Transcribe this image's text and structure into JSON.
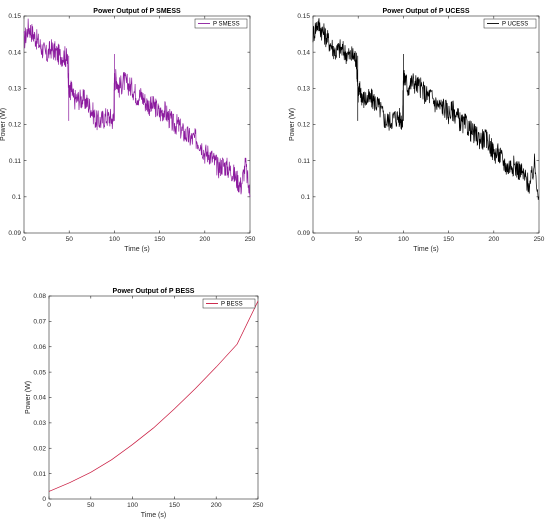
{
  "chart_data": [
    {
      "type": "line",
      "title": "Power Output of P SMESS",
      "xlabel": "Time (s)",
      "ylabel": "Power (W)",
      "xlim": [
        0,
        250
      ],
      "ylim": [
        0.09,
        0.15
      ],
      "xticks": [
        0,
        50,
        100,
        150,
        200,
        250
      ],
      "yticks": [
        0.09,
        0.1,
        0.11,
        0.12,
        0.13,
        0.14,
        0.15
      ],
      "ytick_labels": [
        "0.09",
        "0.1",
        "0.11",
        "0.12",
        "0.13",
        "0.14",
        "0.15"
      ],
      "legend_position": "top-right",
      "series": [
        {
          "name": "P SMESS",
          "color": "#8B1A9E",
          "x": [
            0,
            5,
            10,
            15,
            20,
            25,
            30,
            35,
            40,
            45,
            48,
            50,
            52,
            55,
            60,
            65,
            70,
            75,
            80,
            85,
            90,
            95,
            99,
            100,
            102,
            105,
            110,
            115,
            120,
            125,
            130,
            135,
            140,
            145,
            150,
            155,
            160,
            165,
            170,
            175,
            180,
            185,
            190,
            195,
            200,
            205,
            210,
            215,
            220,
            225,
            230,
            235,
            240,
            245,
            250
          ],
          "y": [
            0.143,
            0.147,
            0.145,
            0.143,
            0.141,
            0.139,
            0.141,
            0.14,
            0.139,
            0.139,
            0.138,
            0.128,
            0.13,
            0.127,
            0.127,
            0.127,
            0.126,
            0.124,
            0.121,
            0.121,
            0.122,
            0.122,
            0.121,
            0.132,
            0.133,
            0.13,
            0.132,
            0.131,
            0.13,
            0.128,
            0.128,
            0.126,
            0.125,
            0.125,
            0.123,
            0.124,
            0.122,
            0.12,
            0.12,
            0.118,
            0.117,
            0.116,
            0.116,
            0.115,
            0.112,
            0.112,
            0.11,
            0.108,
            0.109,
            0.108,
            0.107,
            0.105,
            0.103,
            0.109,
            0.1
          ]
        }
      ]
    },
    {
      "type": "line",
      "title": "Power Output of P UCESS",
      "xlabel": "Time (s)",
      "ylabel": "Power (W)",
      "xlim": [
        0,
        250
      ],
      "ylim": [
        0.09,
        0.15
      ],
      "xticks": [
        0,
        50,
        100,
        150,
        200,
        250
      ],
      "yticks": [
        0.09,
        0.1,
        0.11,
        0.12,
        0.13,
        0.14,
        0.15
      ],
      "ytick_labels": [
        "0.09",
        "0.1",
        "0.11",
        "0.12",
        "0.13",
        "0.14",
        "0.15"
      ],
      "legend_position": "top-right",
      "series": [
        {
          "name": "P UCESS",
          "color": "#000000",
          "x": [
            0,
            5,
            10,
            15,
            20,
            25,
            30,
            35,
            40,
            45,
            48,
            50,
            52,
            55,
            60,
            65,
            70,
            75,
            80,
            85,
            90,
            95,
            99,
            100,
            102,
            105,
            110,
            115,
            120,
            125,
            130,
            135,
            140,
            145,
            150,
            155,
            160,
            165,
            170,
            175,
            180,
            185,
            190,
            195,
            200,
            205,
            210,
            215,
            220,
            225,
            230,
            235,
            240,
            245,
            250
          ],
          "y": [
            0.145,
            0.148,
            0.146,
            0.144,
            0.142,
            0.14,
            0.141,
            0.14,
            0.139,
            0.139,
            0.138,
            0.128,
            0.13,
            0.127,
            0.127,
            0.127,
            0.126,
            0.124,
            0.121,
            0.121,
            0.122,
            0.122,
            0.121,
            0.132,
            0.133,
            0.13,
            0.132,
            0.131,
            0.13,
            0.128,
            0.128,
            0.126,
            0.125,
            0.125,
            0.123,
            0.124,
            0.122,
            0.12,
            0.12,
            0.118,
            0.117,
            0.116,
            0.116,
            0.115,
            0.112,
            0.112,
            0.11,
            0.108,
            0.109,
            0.108,
            0.107,
            0.105,
            0.103,
            0.109,
            0.1
          ]
        }
      ]
    },
    {
      "type": "line",
      "title": "Power Output of P BESS",
      "xlabel": "Time (s)",
      "ylabel": "Power (W)",
      "xlim": [
        0,
        250
      ],
      "ylim": [
        0,
        0.08
      ],
      "xticks": [
        0,
        50,
        100,
        150,
        200,
        250
      ],
      "yticks": [
        0,
        0.01,
        0.02,
        0.03,
        0.04,
        0.05,
        0.06,
        0.07,
        0.08
      ],
      "ytick_labels": [
        "0",
        "0.01",
        "0.02",
        "0.03",
        "0.04",
        "0.05",
        "0.06",
        "0.07",
        "0.08"
      ],
      "legend_position": "top-right",
      "series": [
        {
          "name": "P BESS",
          "color": "#C8163C",
          "x": [
            0,
            25,
            50,
            75,
            100,
            125,
            150,
            175,
            200,
            225,
            250
          ],
          "y": [
            0.003,
            0.0065,
            0.0105,
            0.0155,
            0.0215,
            0.028,
            0.0355,
            0.0435,
            0.052,
            0.061,
            0.078
          ]
        }
      ]
    }
  ]
}
